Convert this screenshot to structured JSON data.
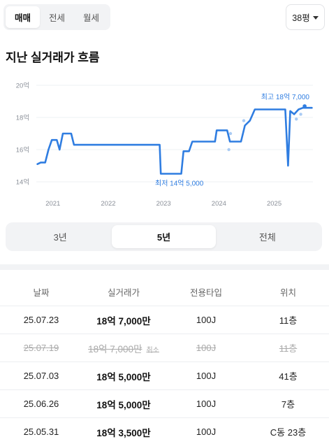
{
  "top_tabs": [
    "매매",
    "전세",
    "월세"
  ],
  "top_tab_active": 0,
  "size_select": {
    "label": "38평"
  },
  "section_title": "지난 실거래가 흐름",
  "chart_data": {
    "type": "line",
    "y_ticks": [
      "20억",
      "18억",
      "16억",
      "14억"
    ],
    "ylim": [
      14,
      20
    ],
    "x_ticks": [
      {
        "label": "2021",
        "t": 2021.0
      },
      {
        "label": "2022",
        "t": 2022.0
      },
      {
        "label": "2023",
        "t": 2023.0
      },
      {
        "label": "2024",
        "t": 2024.0
      },
      {
        "label": "2025",
        "t": 2025.0
      }
    ],
    "xlim": [
      2020.7,
      2025.7
    ],
    "series": [
      {
        "values": [
          [
            2020.72,
            15.1
          ],
          [
            2020.78,
            15.2
          ],
          [
            2020.86,
            15.2
          ],
          [
            2020.92,
            16.0
          ],
          [
            2020.98,
            16.6
          ],
          [
            2021.07,
            16.6
          ],
          [
            2021.12,
            16.0
          ],
          [
            2021.18,
            17.0
          ],
          [
            2021.33,
            17.0
          ],
          [
            2021.38,
            16.3
          ],
          [
            2022.6,
            16.3
          ],
          [
            2022.93,
            16.3
          ],
          [
            2022.95,
            14.5
          ],
          [
            2023.32,
            14.5
          ],
          [
            2023.36,
            15.9
          ],
          [
            2023.46,
            15.9
          ],
          [
            2023.52,
            16.5
          ],
          [
            2023.93,
            16.5
          ],
          [
            2023.96,
            17.2
          ],
          [
            2024.15,
            17.2
          ],
          [
            2024.2,
            16.5
          ],
          [
            2024.4,
            16.5
          ],
          [
            2024.47,
            17.5
          ],
          [
            2024.56,
            17.8
          ],
          [
            2024.65,
            18.5
          ],
          [
            2024.8,
            18.5
          ],
          [
            2025.2,
            18.5
          ],
          [
            2025.25,
            15.0
          ],
          [
            2025.29,
            18.4
          ],
          [
            2025.36,
            18.2
          ],
          [
            2025.44,
            18.5
          ],
          [
            2025.52,
            18.6
          ],
          [
            2025.68,
            18.6
          ]
        ]
      }
    ],
    "scatter": [
      [
        2024.18,
        16.0
      ],
      [
        2024.21,
        17.0
      ],
      [
        2024.45,
        17.8
      ],
      [
        2025.4,
        17.9
      ],
      [
        2025.48,
        18.2
      ],
      [
        2025.55,
        18.7
      ]
    ],
    "annotations": {
      "high": {
        "label": "최고 18억 7,000",
        "t": 2025.55,
        "v": 18.7
      },
      "low": {
        "label": "최저 14억 5,000",
        "t": 2023.12,
        "v": 14.5
      }
    },
    "line_color": "#2f7de1",
    "label_color": "#2f7de1"
  },
  "period_tabs": [
    "3년",
    "5년",
    "전체"
  ],
  "period_active": 1,
  "table": {
    "headers": [
      "날짜",
      "실거래가",
      "전용타입",
      "위치"
    ],
    "rows": [
      {
        "date": "25.07.23",
        "price": "18억 7,000만",
        "type": "100J",
        "floor": "11층",
        "cancelled": false,
        "tag": ""
      },
      {
        "date": "25.07.19",
        "price": "18억 7,000만",
        "type": "100J",
        "floor": "11층",
        "cancelled": true,
        "tag": "취소"
      },
      {
        "date": "25.07.03",
        "price": "18억 5,000만",
        "type": "100J",
        "floor": "41층",
        "cancelled": false,
        "tag": ""
      },
      {
        "date": "25.06.26",
        "price": "18억 5,000만",
        "type": "100J",
        "floor": "7층",
        "cancelled": false,
        "tag": ""
      },
      {
        "date": "25.05.31",
        "price": "18억 3,500만",
        "type": "100J",
        "floor": "C동 23층",
        "cancelled": false,
        "tag": ""
      }
    ]
  }
}
